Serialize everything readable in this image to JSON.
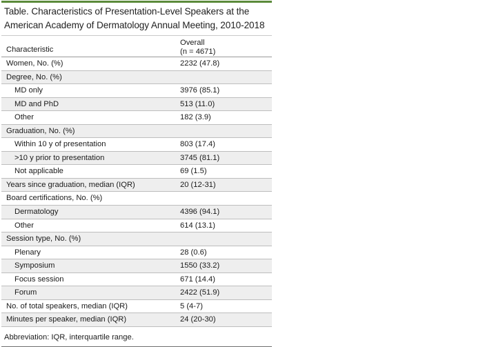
{
  "title": "Table. Characteristics of Presentation-Level Speakers at the American Academy of Dermatology Annual Meeting, 2010-2018",
  "header": {
    "characteristic": "Characteristic",
    "overall_line1": "Overall",
    "overall_line2": "(n = 4671)"
  },
  "rows": [
    {
      "label": "Women, No. (%)",
      "value": "2232 (47.8)",
      "indent": false
    },
    {
      "label": "Degree, No. (%)",
      "value": "",
      "indent": false
    },
    {
      "label": "MD only",
      "value": "3976 (85.1)",
      "indent": true
    },
    {
      "label": "MD and PhD",
      "value": "513 (11.0)",
      "indent": true
    },
    {
      "label": "Other",
      "value": "182 (3.9)",
      "indent": true
    },
    {
      "label": "Graduation, No. (%)",
      "value": "",
      "indent": false
    },
    {
      "label": "Within 10 y of presentation",
      "value": "803 (17.4)",
      "indent": true
    },
    {
      "label": ">10 y prior to presentation",
      "value": "3745 (81.1)",
      "indent": true
    },
    {
      "label": "Not applicable",
      "value": "69 (1.5)",
      "indent": true
    },
    {
      "label": "Years since graduation, median (IQR)",
      "value": "20 (12-31)",
      "indent": false
    },
    {
      "label": "Board certifications, No. (%)",
      "value": "",
      "indent": false
    },
    {
      "label": "Dermatology",
      "value": "4396 (94.1)",
      "indent": true
    },
    {
      "label": "Other",
      "value": "614 (13.1)",
      "indent": true
    },
    {
      "label": "Session type, No. (%)",
      "value": "",
      "indent": false
    },
    {
      "label": "Plenary",
      "value": "28 (0.6)",
      "indent": true
    },
    {
      "label": "Symposium",
      "value": "1550 (33.2)",
      "indent": true
    },
    {
      "label": "Focus session",
      "value": "671 (14.4)",
      "indent": true
    },
    {
      "label": "Forum",
      "value": "2422 (51.9)",
      "indent": true
    },
    {
      "label": "No. of total speakers, median (IQR)",
      "value": "5 (4-7)",
      "indent": false
    },
    {
      "label": "Minutes per speaker, median (IQR)",
      "value": "24 (20-30)",
      "indent": false
    }
  ],
  "footnote": "Abbreviation: IQR, interquartile range.",
  "colors": {
    "accent_rule": "#5b8a3a",
    "row_shade": "#eeeeee"
  }
}
